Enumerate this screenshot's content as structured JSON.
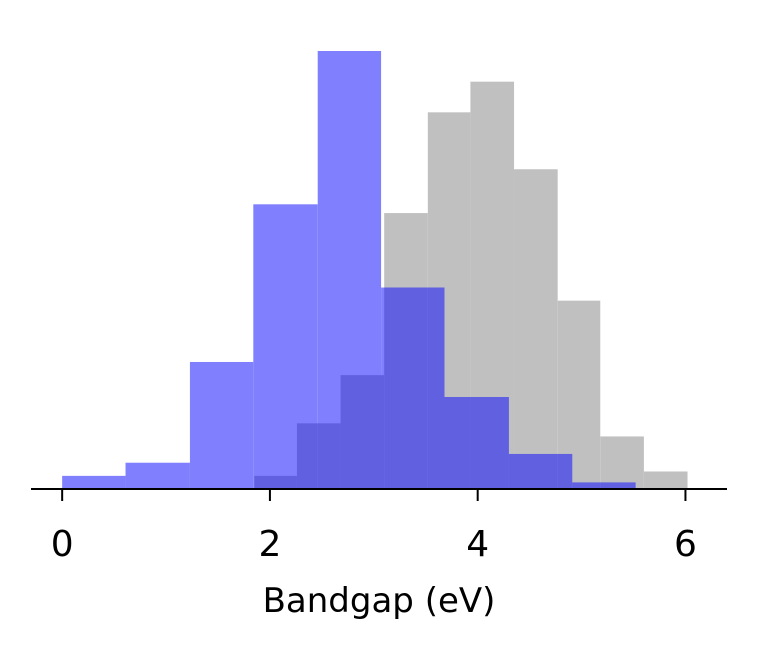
{
  "chart_data": {
    "type": "bar",
    "histogram": true,
    "xlabel": "Bandgap (eV)",
    "ylabel": "",
    "title": "",
    "xlim": [
      -0.3,
      6.4
    ],
    "ylim": [
      0,
      100
    ],
    "xticks": [
      0,
      2,
      4,
      6
    ],
    "yaxis_visible": false,
    "grid": false,
    "legend": "none",
    "overlap_color": "#6060e0",
    "series": [
      {
        "color": "#c0c0c0",
        "bins": [
          {
            "x0": 1.85,
            "x1": 2.26,
            "value": 3
          },
          {
            "x0": 2.26,
            "x1": 2.68,
            "value": 15
          },
          {
            "x0": 2.68,
            "x1": 3.1,
            "value": 26
          },
          {
            "x0": 3.1,
            "x1": 3.52,
            "value": 63
          },
          {
            "x0": 3.52,
            "x1": 3.93,
            "value": 86
          },
          {
            "x0": 3.93,
            "x1": 4.35,
            "value": 93
          },
          {
            "x0": 4.35,
            "x1": 4.77,
            "value": 73
          },
          {
            "x0": 4.77,
            "x1": 5.18,
            "value": 43
          },
          {
            "x0": 5.18,
            "x1": 5.6,
            "value": 12
          },
          {
            "x0": 5.6,
            "x1": 6.02,
            "value": 4
          }
        ]
      },
      {
        "color": "#8080ff",
        "bins": [
          {
            "x0": 0.0,
            "x1": 0.61,
            "value": 3
          },
          {
            "x0": 0.61,
            "x1": 1.23,
            "value": 6
          },
          {
            "x0": 1.23,
            "x1": 1.84,
            "value": 29
          },
          {
            "x0": 1.84,
            "x1": 2.46,
            "value": 65
          },
          {
            "x0": 2.46,
            "x1": 3.07,
            "value": 100
          },
          {
            "x0": 3.07,
            "x1": 3.68,
            "value": 46
          },
          {
            "x0": 3.68,
            "x1": 4.3,
            "value": 21
          },
          {
            "x0": 4.3,
            "x1": 4.91,
            "value": 8
          },
          {
            "x0": 4.91,
            "x1": 5.52,
            "value": 1.5
          }
        ]
      }
    ]
  }
}
